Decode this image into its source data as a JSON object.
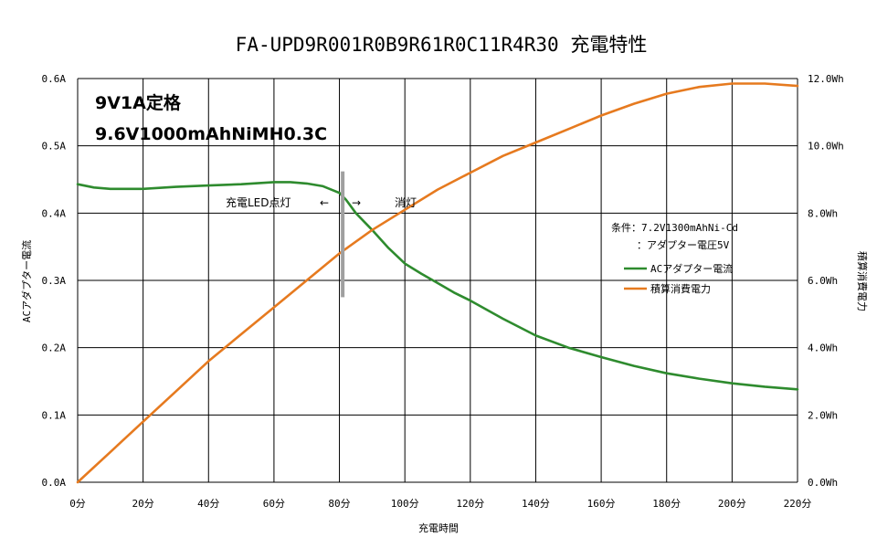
{
  "chart_data": {
    "type": "line",
    "title": "FA-UPD9R001R0B9R61R0C11R4R30 充電特性",
    "xlabel": "充電時間",
    "ylabel_left": "ACアダプター電流",
    "ylabel_right": "積算消費電力",
    "xlim": [
      0,
      220
    ],
    "ylim_left": [
      0,
      0.6
    ],
    "ylim_right": [
      0,
      12
    ],
    "x_ticks": [
      "0分",
      "20分",
      "40分",
      "60分",
      "80分",
      "100分",
      "120分",
      "140分",
      "160分",
      "180分",
      "200分",
      "220分"
    ],
    "y_left_ticks": [
      "0.0A",
      "0.1A",
      "0.2A",
      "0.3A",
      "0.4A",
      "0.5A",
      "0.6A"
    ],
    "y_right_ticks": [
      "0.0Wh",
      "2.0Wh",
      "4.0Wh",
      "6.0Wh",
      "8.0Wh",
      "10.0Wh",
      "12.0Wh"
    ],
    "grid": true,
    "legend_position": "right",
    "series": [
      {
        "name": "ACアダプター電流",
        "color": "#2e8b2e",
        "axis": "left",
        "points": [
          [
            0,
            0.443
          ],
          [
            5,
            0.438
          ],
          [
            10,
            0.436
          ],
          [
            20,
            0.436
          ],
          [
            30,
            0.439
          ],
          [
            40,
            0.441
          ],
          [
            50,
            0.443
          ],
          [
            60,
            0.446
          ],
          [
            65,
            0.446
          ],
          [
            70,
            0.444
          ],
          [
            75,
            0.44
          ],
          [
            80,
            0.43
          ],
          [
            82,
            0.42
          ],
          [
            85,
            0.4
          ],
          [
            90,
            0.375
          ],
          [
            95,
            0.348
          ],
          [
            100,
            0.325
          ],
          [
            105,
            0.31
          ],
          [
            110,
            0.296
          ],
          [
            115,
            0.282
          ],
          [
            120,
            0.27
          ],
          [
            130,
            0.243
          ],
          [
            140,
            0.218
          ],
          [
            150,
            0.2
          ],
          [
            160,
            0.186
          ],
          [
            170,
            0.173
          ],
          [
            180,
            0.162
          ],
          [
            190,
            0.154
          ],
          [
            200,
            0.147
          ],
          [
            210,
            0.142
          ],
          [
            220,
            0.138
          ]
        ]
      },
      {
        "name": "積算消費電力",
        "color": "#e67a1f",
        "axis": "right",
        "points": [
          [
            0,
            0.0
          ],
          [
            10,
            0.9
          ],
          [
            20,
            1.8
          ],
          [
            30,
            2.7
          ],
          [
            40,
            3.6
          ],
          [
            50,
            4.4
          ],
          [
            60,
            5.2
          ],
          [
            70,
            6.0
          ],
          [
            80,
            6.8
          ],
          [
            90,
            7.5
          ],
          [
            100,
            8.1
          ],
          [
            110,
            8.7
          ],
          [
            120,
            9.2
          ],
          [
            130,
            9.7
          ],
          [
            140,
            10.1
          ],
          [
            150,
            10.5
          ],
          [
            160,
            10.9
          ],
          [
            170,
            11.25
          ],
          [
            180,
            11.55
          ],
          [
            190,
            11.75
          ],
          [
            200,
            11.85
          ],
          [
            210,
            11.85
          ],
          [
            220,
            11.78
          ]
        ]
      }
    ],
    "annotations": {
      "spec_line1": "9V1A定格",
      "spec_line2": "9.6V1000mAhNiMH0.3C",
      "led_on": "充電LED点灯",
      "left_arrow": "←",
      "right_arrow": "→",
      "led_off": "消灯",
      "marker_x": 81,
      "marker_y_range": [
        0.275,
        0.462
      ],
      "condition_line1": "条件：7.2V1300mAhNi-Cd",
      "condition_line2": "：アダプター電圧5V"
    }
  }
}
